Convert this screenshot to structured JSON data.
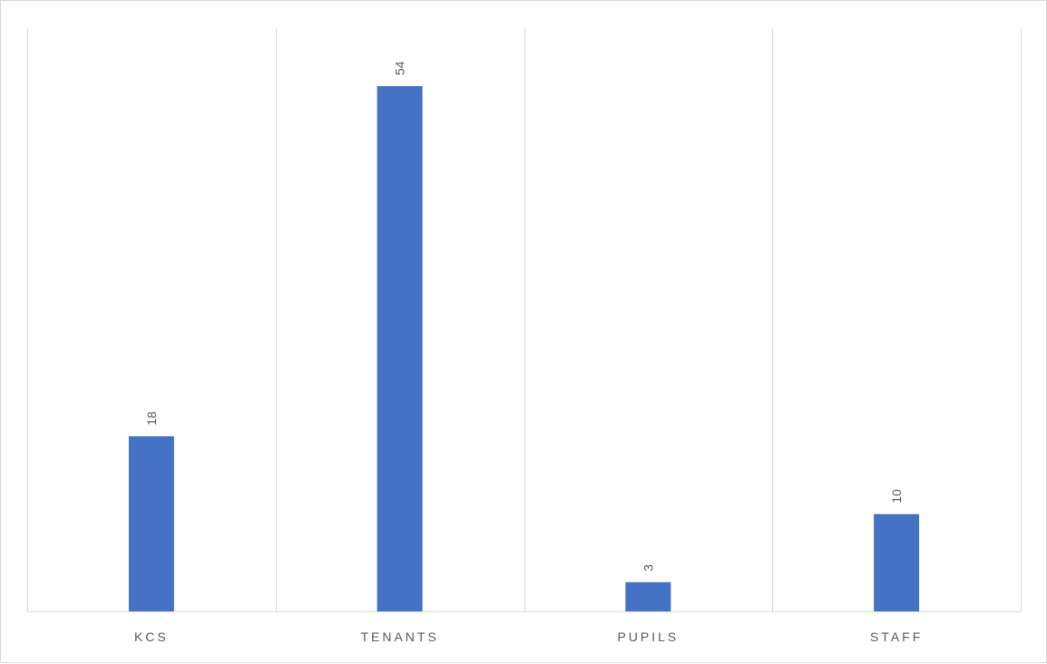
{
  "chart_data": {
    "type": "bar",
    "categories": [
      "KCS",
      "TENANTS",
      "PUPILS",
      "STAFF"
    ],
    "values": [
      18,
      54,
      3,
      10
    ],
    "title": "",
    "xlabel": "",
    "ylabel": "",
    "ylim": [
      0,
      60
    ],
    "grid": "vertical category dividers",
    "legend": "none",
    "colors": {
      "bar": "#4472c4",
      "grid": "#d9d9d9",
      "text": "#595959",
      "border": "#d9d9d9"
    },
    "data_labels": true
  }
}
